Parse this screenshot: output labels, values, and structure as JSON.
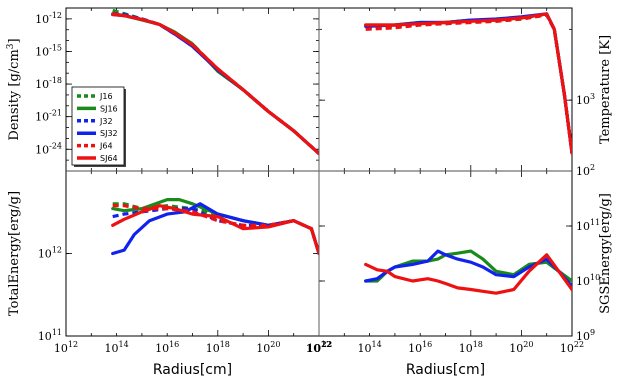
{
  "colors": {
    "green": "#1a8a1a",
    "blue": "#1122ee",
    "red": "#ee1111"
  },
  "chart_data": [
    {
      "id": "density",
      "type": "line",
      "ylabel": "Density [g/cm^3]",
      "yscale": "log",
      "xscale": "log",
      "xlim": [
        1000000000000.0,
        1e+22
      ],
      "ylim": [
        1e-26,
        1e-11
      ],
      "ytick_labels": [
        "10^-12",
        "10^-15",
        "10^-18",
        "10^-21",
        "10^-24"
      ],
      "yticks": [
        1e-12,
        1e-15,
        1e-18,
        1e-21,
        1e-24
      ],
      "legend": {
        "placement": "lower-left",
        "entries": [
          {
            "label": "J16",
            "color": "#1a8a1a",
            "dash": true
          },
          {
            "label": "SJ16",
            "color": "#1a8a1a",
            "dash": false
          },
          {
            "label": "J32",
            "color": "#1122ee",
            "dash": true
          },
          {
            "label": "SJ32",
            "color": "#1122ee",
            "dash": false
          },
          {
            "label": "J64",
            "color": "#ee1111",
            "dash": true
          },
          {
            "label": "SJ64",
            "color": "#ee1111",
            "dash": false
          }
        ]
      },
      "series": [
        {
          "name": "J16",
          "color": "#1a8a1a",
          "dash": true,
          "x": [
            70000000000000.0,
            200000000000000.0,
            1000000000000000.0,
            5000000000000000.0,
            2e+16,
            1e+17,
            1e+18,
            1e+19,
            1e+20,
            1e+21,
            1e+22
          ],
          "y": [
            6e-12,
            3e-12,
            1e-12,
            3e-13,
            5e-14,
            5e-15,
            2e-17,
            3e-19,
            3e-21,
            5e-23,
            4e-25
          ]
        },
        {
          "name": "SJ16",
          "color": "#1a8a1a",
          "dash": false,
          "x": [
            70000000000000.0,
            200000000000000.0,
            1000000000000000.0,
            5000000000000000.0,
            2e+16,
            1e+17,
            1e+18,
            1e+19,
            1e+20,
            1e+21,
            1e+22
          ],
          "y": [
            3e-12,
            2e-12,
            8e-13,
            3e-13,
            6e-14,
            5e-15,
            1.5e-17,
            3e-19,
            3e-21,
            5e-23,
            4e-25
          ]
        },
        {
          "name": "J32",
          "color": "#1122ee",
          "dash": true,
          "x": [
            70000000000000.0,
            200000000000000.0,
            1000000000000000.0,
            5000000000000000.0,
            2e+16,
            1e+17,
            1e+18,
            1e+19,
            1e+20,
            1e+21,
            1e+22
          ],
          "y": [
            3e-12,
            2.5e-12,
            1e-12,
            3e-13,
            4e-14,
            3e-15,
            2e-17,
            3e-19,
            3e-21,
            5e-23,
            4e-25
          ]
        },
        {
          "name": "SJ32",
          "color": "#1122ee",
          "dash": false,
          "x": [
            70000000000000.0,
            200000000000000.0,
            1000000000000000.0,
            5000000000000000.0,
            2e+16,
            1e+17,
            1e+18,
            1e+19,
            1e+20,
            1e+21,
            1e+22
          ],
          "y": [
            2.5e-12,
            2e-12,
            9e-13,
            3e-13,
            4e-14,
            3e-15,
            2e-17,
            3e-19,
            3e-21,
            5e-23,
            4e-25
          ]
        },
        {
          "name": "J64",
          "color": "#ee1111",
          "dash": true,
          "x": [
            70000000000000.0,
            200000000000000.0,
            1000000000000000.0,
            5000000000000000.0,
            2e+16,
            1e+17,
            1e+18,
            1e+19,
            1e+20,
            1e+21,
            1e+22
          ],
          "y": [
            3e-12,
            2e-12,
            9e-13,
            3e-13,
            5e-14,
            4e-15,
            2.5e-17,
            3e-19,
            3e-21,
            5e-23,
            4e-25
          ]
        },
        {
          "name": "SJ64",
          "color": "#ee1111",
          "dash": false,
          "x": [
            70000000000000.0,
            200000000000000.0,
            1000000000000000.0,
            5000000000000000.0,
            2e+16,
            1e+17,
            1e+18,
            1e+19,
            1e+20,
            1e+21,
            1e+22
          ],
          "y": [
            2.5e-12,
            2e-12,
            9e-13,
            3e-13,
            5e-14,
            4e-15,
            2.5e-17,
            3e-19,
            3e-21,
            5e-23,
            4e-25
          ]
        }
      ]
    },
    {
      "id": "temperature",
      "type": "line",
      "ylabel": "Temperature [K]",
      "yscale": "log",
      "xscale": "log",
      "xlim": [
        1000000000000.0,
        1e+22
      ],
      "ylim": [
        100,
        20000
      ],
      "ytick_labels": [
        "10^3",
        "10^2"
      ],
      "yticks": [
        1000,
        100
      ],
      "series": [
        {
          "name": "J16",
          "color": "#1a8a1a",
          "dash": true,
          "x": [
            70000000000000.0,
            1000000000000000.0,
            1e+16,
            1e+17,
            1e+18,
            1e+19,
            1e+20,
            1e+21,
            2e+21,
            5e+21,
            1e+22
          ],
          "y": [
            11000,
            11000,
            12000,
            12000,
            13000,
            13000,
            14000,
            16000,
            10000,
            1200,
            180
          ]
        },
        {
          "name": "SJ16",
          "color": "#1a8a1a",
          "dash": false,
          "x": [
            70000000000000.0,
            1000000000000000.0,
            1e+16,
            1e+17,
            1e+18,
            1e+19,
            1e+20,
            1e+21,
            2e+21,
            5e+21,
            1e+22
          ],
          "y": [
            11500,
            11500,
            12500,
            12500,
            13500,
            13500,
            14500,
            16500,
            10000,
            1200,
            180
          ]
        },
        {
          "name": "J32",
          "color": "#1122ee",
          "dash": true,
          "x": [
            70000000000000.0,
            1000000000000000.0,
            1e+16,
            1e+17,
            1e+18,
            1e+19,
            1e+20,
            1e+21,
            2e+21,
            5e+21,
            1e+22
          ],
          "y": [
            10500,
            11000,
            12000,
            12000,
            13000,
            13500,
            14500,
            16000,
            10000,
            1200,
            180
          ]
        },
        {
          "name": "SJ32",
          "color": "#1122ee",
          "dash": false,
          "x": [
            70000000000000.0,
            1000000000000000.0,
            1e+16,
            1e+17,
            1e+18,
            1e+19,
            1e+20,
            1e+21,
            2e+21,
            5e+21,
            1e+22
          ],
          "y": [
            11000,
            11500,
            12500,
            12500,
            13500,
            14000,
            15000,
            16500,
            10000,
            1200,
            180
          ]
        },
        {
          "name": "J64",
          "color": "#ee1111",
          "dash": true,
          "x": [
            70000000000000.0,
            1000000000000000.0,
            1e+16,
            1e+17,
            1e+18,
            1e+19,
            1e+20,
            1e+21,
            2e+21,
            5e+21,
            1e+22
          ],
          "y": [
            10000,
            10500,
            11500,
            12000,
            12500,
            13000,
            14000,
            16000,
            10000,
            1200,
            180
          ]
        },
        {
          "name": "SJ64",
          "color": "#ee1111",
          "dash": false,
          "x": [
            70000000000000.0,
            1000000000000000.0,
            1e+16,
            1e+17,
            1e+18,
            1e+19,
            1e+20,
            1e+21,
            2e+21,
            5e+21,
            1e+22
          ],
          "y": [
            11500,
            11500,
            12000,
            12500,
            13000,
            13500,
            14500,
            16500,
            10000,
            1200,
            180
          ]
        }
      ]
    },
    {
      "id": "total-energy",
      "type": "line",
      "ylabel": "TotalEnergy[erg/g]",
      "xlabel": "Radius[cm]",
      "yscale": "log",
      "xscale": "log",
      "xlim": [
        1000000000000.0,
        1e+22
      ],
      "ylim": [
        100000000000.0,
        10000000000000.0
      ],
      "xtick_labels": [
        "10^12",
        "10^14",
        "10^16",
        "10^18",
        "10^20",
        "10^22"
      ],
      "xticks": [
        1000000000000.0,
        100000000000000.0,
        1e+16,
        1e+18,
        1e+20,
        1e+22
      ],
      "ytick_labels": [
        "10^12",
        "10^11"
      ],
      "yticks": [
        1000000000000.0,
        100000000000.0
      ],
      "series": [
        {
          "name": "J16",
          "color": "#1a8a1a",
          "dash": true,
          "x": [
            70000000000000.0,
            200000000000000.0,
            1000000000000000.0,
            1e+16,
            1e+17,
            1e+18,
            1e+19,
            1e+20,
            1e+21,
            5e+21,
            1e+22
          ],
          "y": [
            4000000000000.0,
            4000000000000.0,
            3500000000000.0,
            3800000000000.0,
            3500000000000.0,
            3000000000000.0,
            2500000000000.0,
            2200000000000.0,
            2500000000000.0,
            2000000000000.0,
            1000000000000.0
          ]
        },
        {
          "name": "SJ16",
          "color": "#1a8a1a",
          "dash": false,
          "x": [
            70000000000000.0,
            200000000000000.0,
            1000000000000000.0,
            1e+16,
            3e+16,
            1e+17,
            1e+18,
            1e+19,
            1e+20,
            1e+21,
            5e+21,
            1e+22
          ],
          "y": [
            3500000000000.0,
            3300000000000.0,
            3500000000000.0,
            4500000000000.0,
            4500000000000.0,
            4000000000000.0,
            3000000000000.0,
            2500000000000.0,
            2200000000000.0,
            2500000000000.0,
            2000000000000.0,
            1000000000000.0
          ]
        },
        {
          "name": "J32",
          "color": "#1122ee",
          "dash": true,
          "x": [
            70000000000000.0,
            200000000000000.0,
            1000000000000000.0,
            1e+16,
            1e+17,
            1e+18,
            1e+19,
            1e+20,
            1e+21,
            5e+21,
            1e+22
          ],
          "y": [
            2800000000000.0,
            3000000000000.0,
            3200000000000.0,
            3500000000000.0,
            3500000000000.0,
            2500000000000.0,
            2200000000000.0,
            2200000000000.0,
            2500000000000.0,
            2000000000000.0,
            1000000000000.0
          ]
        },
        {
          "name": "SJ32",
          "color": "#1122ee",
          "dash": false,
          "x": [
            70000000000000.0,
            200000000000000.0,
            500000000000000.0,
            2000000000000000.0,
            1e+16,
            5e+16,
            2e+17,
            1e+18,
            1e+19,
            1e+20,
            1e+21,
            5e+21,
            1e+22
          ],
          "y": [
            1000000000000.0,
            1100000000000.0,
            1700000000000.0,
            2500000000000.0,
            3000000000000.0,
            3200000000000.0,
            4000000000000.0,
            3000000000000.0,
            2500000000000.0,
            2200000000000.0,
            2500000000000.0,
            2000000000000.0,
            1000000000000.0
          ]
        },
        {
          "name": "J64",
          "color": "#ee1111",
          "dash": true,
          "x": [
            70000000000000.0,
            200000000000000.0,
            1000000000000000.0,
            1e+16,
            1e+17,
            1e+18,
            1e+19,
            1e+20,
            1e+21,
            5e+21,
            1e+22
          ],
          "y": [
            3800000000000.0,
            3800000000000.0,
            3500000000000.0,
            3500000000000.0,
            3200000000000.0,
            2500000000000.0,
            2200000000000.0,
            2200000000000.0,
            2500000000000.0,
            2000000000000.0,
            1000000000000.0
          ]
        },
        {
          "name": "SJ64",
          "color": "#ee1111",
          "dash": false,
          "x": [
            70000000000000.0,
            200000000000000.0,
            1000000000000000.0,
            5000000000000000.0,
            2e+16,
            1e+17,
            1e+18,
            1e+19,
            1e+20,
            1e+21,
            5e+21,
            1e+22
          ],
          "y": [
            2200000000000.0,
            2600000000000.0,
            3200000000000.0,
            3800000000000.0,
            3500000000000.0,
            3000000000000.0,
            2800000000000.0,
            2000000000000.0,
            2100000000000.0,
            2500000000000.0,
            2000000000000.0,
            1000000000000.0
          ]
        }
      ]
    },
    {
      "id": "sgs-energy",
      "type": "line",
      "ylabel": "SGSEnergy[erg/g]",
      "xlabel": "Radius[cm]",
      "yscale": "log",
      "xscale": "log",
      "xlim": [
        1000000000000.0,
        1e+22
      ],
      "ylim": [
        1000000000.0,
        1000000000000.0
      ],
      "xtick_labels": [
        "10^12",
        "10^14",
        "10^16",
        "10^18",
        "10^20",
        "10^22"
      ],
      "xticks": [
        1000000000000.0,
        100000000000000.0,
        1e+16,
        1e+18,
        1e+20,
        1e+22
      ],
      "ytick_labels": [
        "10^11",
        "10^10",
        "10^9"
      ],
      "yticks": [
        100000000000.0,
        10000000000.0,
        1000000000.0
      ],
      "series": [
        {
          "name": "SJ16",
          "color": "#1a8a1a",
          "dash": false,
          "x": [
            70000000000000.0,
            200000000000000.0,
            500000000000000.0,
            1000000000000000.0,
            5000000000000000.0,
            2e+16,
            5e+16,
            1e+17,
            3e+17,
            1e+18,
            3e+18,
            1e+19,
            5e+19,
            2e+20,
            1e+21,
            3e+21,
            1e+22
          ],
          "y": [
            10000000000.0,
            10000000000.0,
            15000000000.0,
            18000000000.0,
            23000000000.0,
            23000000000.0,
            25000000000.0,
            30000000000.0,
            32000000000.0,
            35000000000.0,
            25000000000.0,
            15000000000.0,
            13000000000.0,
            20000000000.0,
            22000000000.0,
            15000000000.0,
            10000000000.0
          ]
        },
        {
          "name": "SJ32",
          "color": "#1122ee",
          "dash": false,
          "x": [
            70000000000000.0,
            200000000000000.0,
            500000000000000.0,
            1000000000000000.0,
            5000000000000000.0,
            2e+16,
            5e+16,
            1e+17,
            3e+17,
            1e+18,
            3e+18,
            1e+19,
            5e+19,
            2e+20,
            1e+21,
            3e+21,
            1e+22
          ],
          "y": [
            10000000000.0,
            11000000000.0,
            15000000000.0,
            18000000000.0,
            20000000000.0,
            23000000000.0,
            35000000000.0,
            30000000000.0,
            25000000000.0,
            22000000000.0,
            18000000000.0,
            13000000000.0,
            12000000000.0,
            18000000000.0,
            25000000000.0,
            15000000000.0,
            8000000000.0
          ]
        },
        {
          "name": "SJ64",
          "color": "#ee1111",
          "dash": false,
          "x": [
            70000000000000.0,
            200000000000000.0,
            500000000000000.0,
            1000000000000000.0,
            5000000000000000.0,
            2e+16,
            5e+16,
            1e+17,
            3e+17,
            1e+18,
            3e+18,
            1e+19,
            5e+19,
            2e+20,
            1e+21,
            3e+21,
            1e+22
          ],
          "y": [
            20000000000.0,
            16000000000.0,
            15000000000.0,
            12000000000.0,
            10000000000.0,
            11000000000.0,
            10000000000.0,
            9000000000.0,
            7500000000.0,
            7000000000.0,
            6500000000.0,
            6000000000.0,
            7000000000.0,
            15000000000.0,
            30000000000.0,
            15000000000.0,
            7000000000.0
          ]
        }
      ]
    }
  ]
}
